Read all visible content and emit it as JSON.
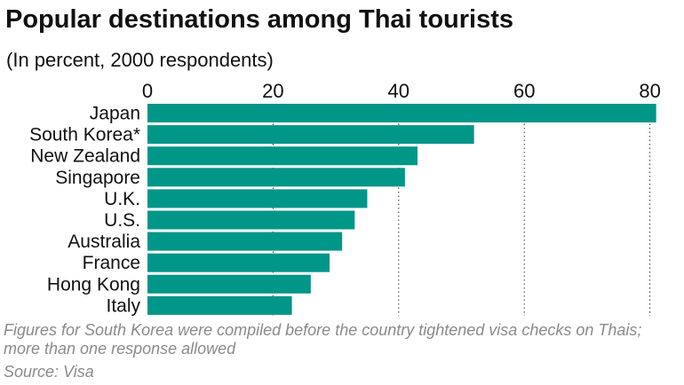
{
  "title": "Popular destinations among Thai tourists",
  "subtitle": "(In percent, 2000 respondents)",
  "note": "Figures for South Korea were compiled before the country tightened visa checks on Thais; more than one response allowed",
  "source": "Source: Visa",
  "colors": {
    "bar": "#009688",
    "grid": "#333333",
    "muted_text": "#8a8a8a"
  },
  "chart_data": {
    "type": "bar",
    "orientation": "horizontal",
    "categories": [
      "Japan",
      "South Korea*",
      "New Zealand",
      "Singapore",
      "U.K.",
      "U.S.",
      "Australia",
      "France",
      "Hong Kong",
      "Italy"
    ],
    "values": [
      81,
      52,
      43,
      41,
      35,
      33,
      31,
      29,
      26,
      23
    ],
    "xticks": [
      0,
      20,
      40,
      60,
      80
    ],
    "xlim": [
      0,
      85
    ],
    "grid": "vertical dotted",
    "xaxis_position": "top"
  }
}
